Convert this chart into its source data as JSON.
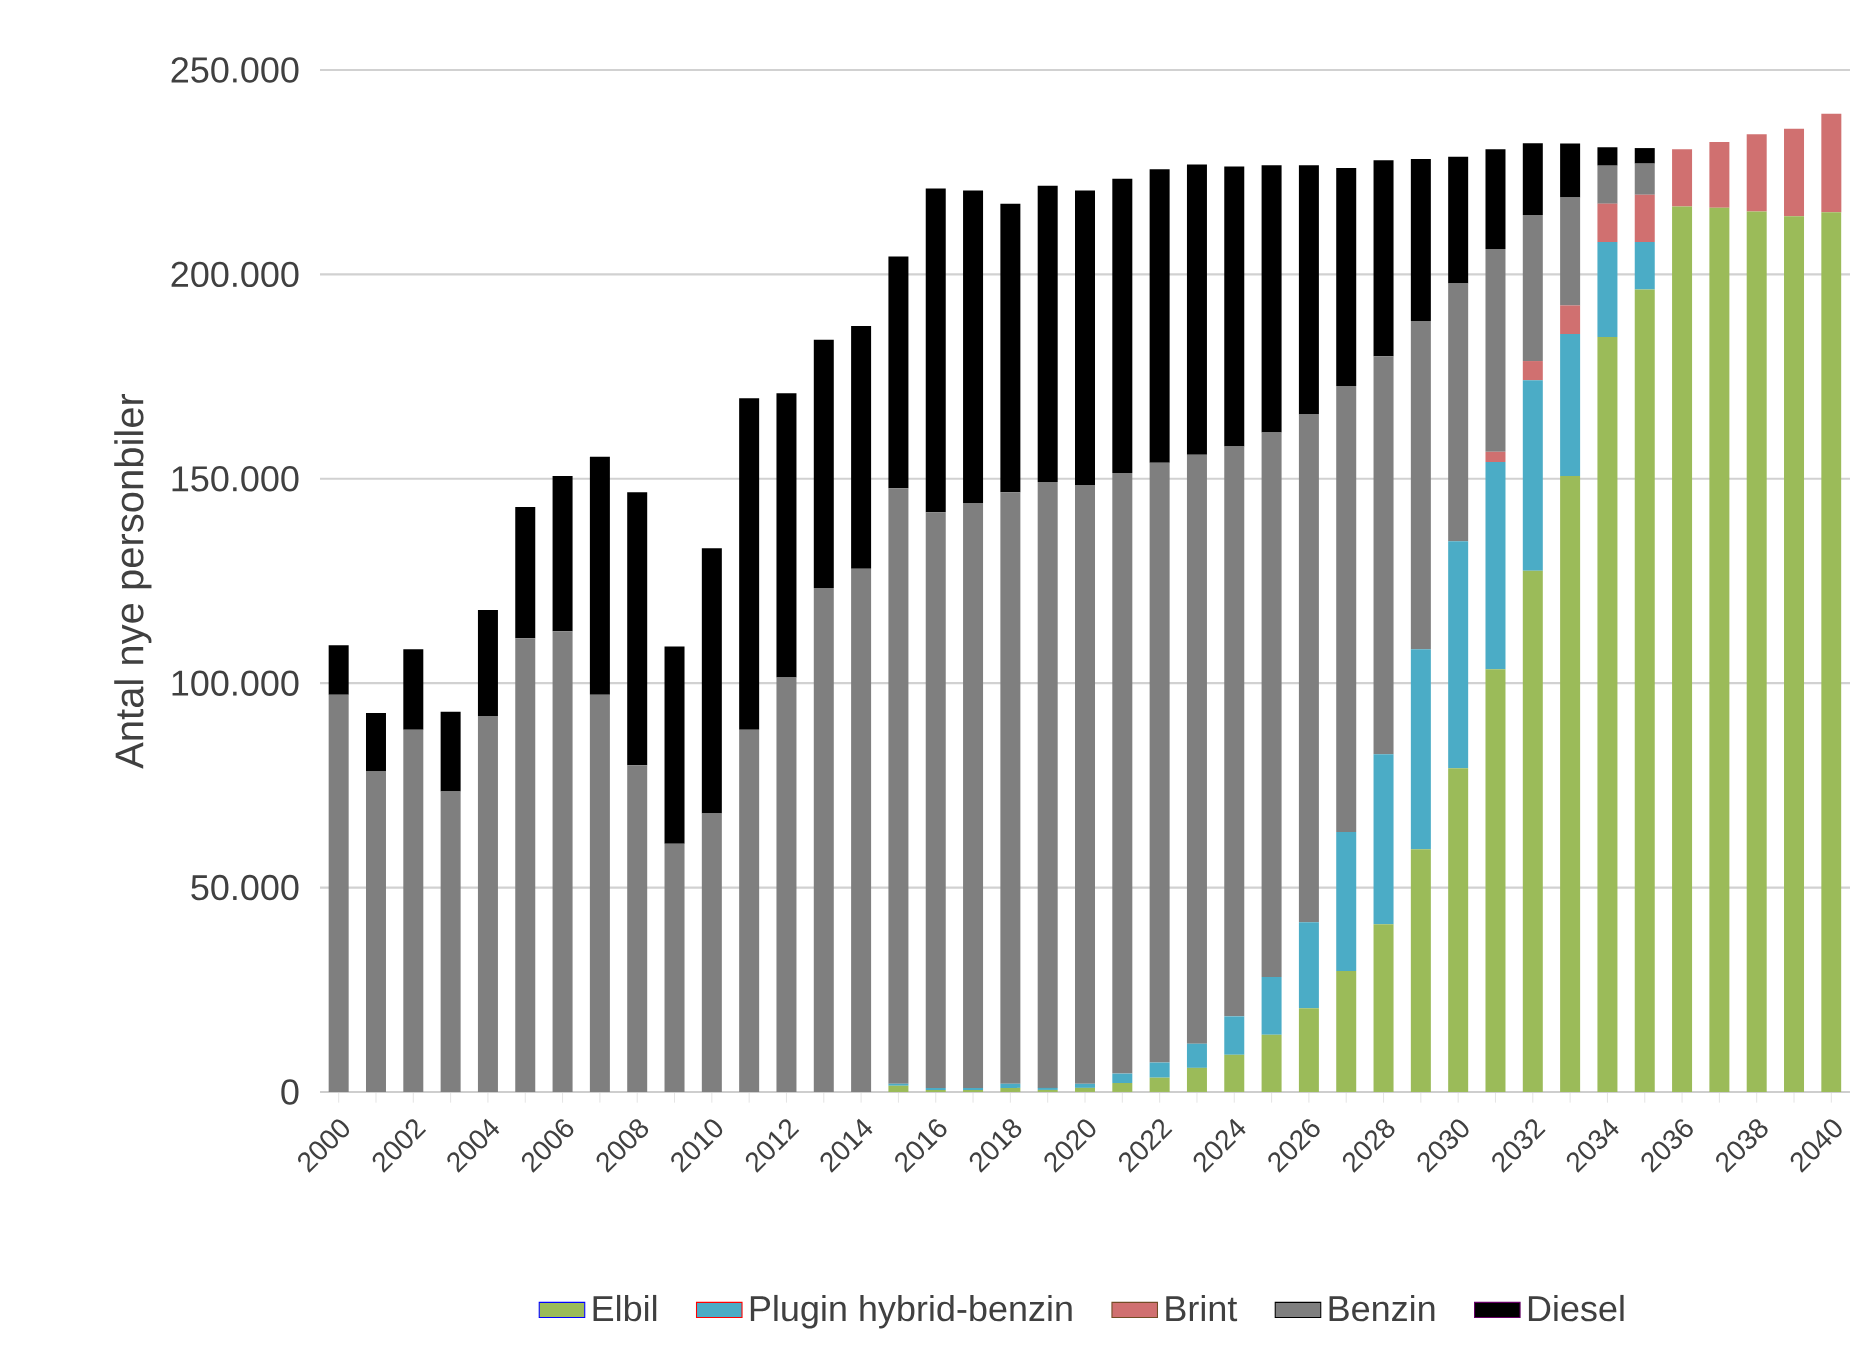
{
  "chart_data": {
    "type": "bar",
    "stacked": true,
    "ylabel": "Antal nye personbiler",
    "categories": [
      "2000",
      null,
      "2002",
      null,
      "2004",
      null,
      "2006",
      null,
      "2008",
      null,
      "2010",
      null,
      "2012",
      null,
      "2014",
      null,
      "2016",
      null,
      "2018",
      null,
      "2020",
      null,
      "2022",
      null,
      "2024",
      null,
      "2026",
      null,
      "2028",
      null,
      "2030",
      null,
      "2032",
      null,
      "2034",
      null,
      "2036",
      null,
      "2038",
      null,
      "2040"
    ],
    "series": [
      {
        "name": "Elbil",
        "color": "#9bbb59",
        "values": [
          0,
          0,
          0,
          0,
          0,
          0,
          0,
          0,
          0,
          0,
          0,
          0,
          0,
          0,
          0,
          1500,
          500,
          500,
          1000,
          500,
          1000,
          2200,
          3500,
          5900,
          9100,
          14000,
          20500,
          29600,
          41000,
          59400,
          79200,
          103400,
          127500,
          150700,
          184700,
          196300,
          216600,
          216300,
          215400,
          214200,
          215200
        ]
      },
      {
        "name": "Plugin hybrid-benzin",
        "color": "#4bacc6",
        "values": [
          0,
          0,
          0,
          0,
          0,
          0,
          0,
          0,
          0,
          0,
          0,
          0,
          0,
          0,
          0,
          500,
          500,
          500,
          1000,
          500,
          1000,
          2300,
          3700,
          5900,
          9400,
          14100,
          21000,
          34000,
          41600,
          48900,
          55500,
          50700,
          46600,
          34700,
          23200,
          11600,
          0,
          0,
          0,
          0,
          0
        ]
      },
      {
        "name": "Brint",
        "color": "#d07070",
        "values": [
          0,
          0,
          0,
          0,
          0,
          0,
          0,
          0,
          0,
          0,
          0,
          0,
          0,
          0,
          0,
          0,
          0,
          0,
          0,
          0,
          0,
          0,
          0,
          0,
          0,
          0,
          0,
          0,
          0,
          0,
          0,
          2500,
          4700,
          7000,
          9400,
          11600,
          14000,
          16100,
          18900,
          21400,
          24100
        ]
      },
      {
        "name": "Benzin",
        "color": "#7f7f7f",
        "values": [
          97200,
          78400,
          88600,
          73500,
          92000,
          111000,
          112700,
          97200,
          79900,
          60700,
          68100,
          88600,
          101400,
          123300,
          128000,
          145700,
          140800,
          143100,
          144700,
          148200,
          146500,
          146900,
          146700,
          144100,
          139400,
          133200,
          124200,
          109100,
          97400,
          80300,
          63100,
          49600,
          35700,
          26400,
          9300,
          7600,
          0,
          0,
          0,
          0,
          0
        ]
      },
      {
        "name": "Diesel",
        "color": "#000000",
        "values": [
          12100,
          14300,
          19700,
          19500,
          25900,
          32100,
          38000,
          58200,
          66800,
          48300,
          64900,
          81100,
          69500,
          60700,
          59400,
          56700,
          79200,
          76400,
          70600,
          72500,
          72000,
          72000,
          71800,
          71000,
          68500,
          65400,
          61000,
          53300,
          47900,
          39600,
          31000,
          24400,
          17600,
          13200,
          4500,
          3800,
          0,
          0,
          0,
          0,
          0
        ]
      }
    ],
    "ylim": [
      0,
      250000
    ],
    "yticks": [
      0,
      {
        "value": 50000,
        "label": "50.000"
      },
      {
        "value": 100000,
        "label": "100.000"
      },
      {
        "value": 150000,
        "label": "150.000"
      },
      {
        "value": 200000,
        "label": "200.000"
      },
      {
        "value": 250000,
        "label": "250.000"
      }
    ],
    "grid": "y",
    "legend": "bottom"
  }
}
